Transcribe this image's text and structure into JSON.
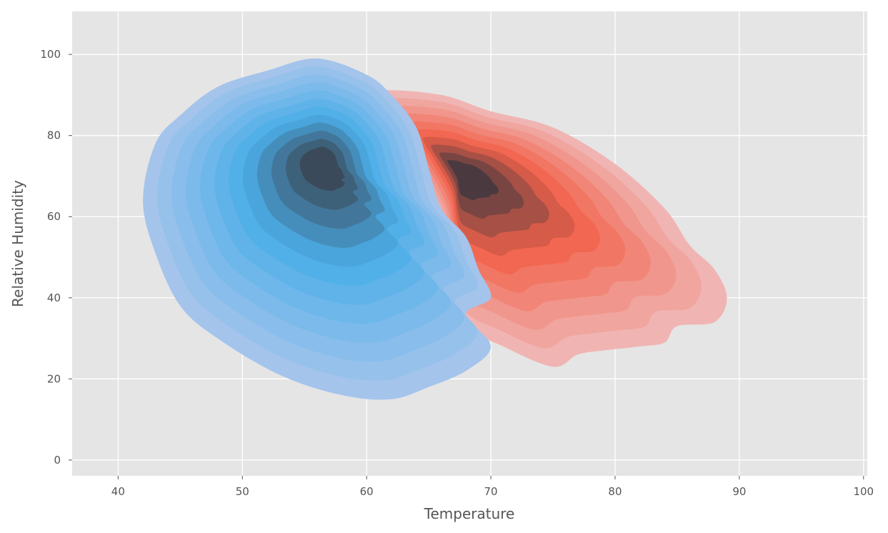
{
  "chart_data": {
    "type": "kde",
    "xlabel": "Temperature",
    "ylabel": "Relative Humidity",
    "xlim": [
      36.3,
      100.3
    ],
    "ylim": [
      -3.9,
      110.6
    ],
    "xticks": [
      40,
      50,
      60,
      70,
      80,
      90,
      100
    ],
    "yticks": [
      0,
      20,
      40,
      60,
      80,
      100
    ],
    "grid": true,
    "background": "#e5e5e5",
    "series": [
      {
        "color_light": "#f0b5b3",
        "color_mid": "#f26149",
        "color_peak": "#4a3a40",
        "peak": [
          67.5,
          71
        ],
        "outline": [
          [
            61,
            91
          ],
          [
            66,
            90
          ],
          [
            70,
            86
          ],
          [
            75,
            82
          ],
          [
            80,
            73
          ],
          [
            84,
            62
          ],
          [
            86,
            53
          ],
          [
            88,
            47
          ],
          [
            89,
            40
          ],
          [
            88,
            34
          ],
          [
            85,
            33
          ],
          [
            84,
            29
          ],
          [
            82,
            28
          ],
          [
            79,
            27
          ],
          [
            77,
            26
          ],
          [
            75,
            23
          ],
          [
            71,
            28
          ],
          [
            68,
            33
          ],
          [
            67,
            43
          ],
          [
            66,
            60
          ],
          [
            63,
            77
          ],
          [
            61,
            87
          ]
        ],
        "levels": 10
      },
      {
        "color_light": "#a4c4ec",
        "color_mid": "#4aaee8",
        "color_peak": "#3b4a5a",
        "peak": [
          56.5,
          74
        ],
        "outline": [
          [
            56,
            99
          ],
          [
            60,
            95
          ],
          [
            62,
            90
          ],
          [
            64,
            82
          ],
          [
            65,
            72
          ],
          [
            66,
            62
          ],
          [
            68,
            55
          ],
          [
            69,
            47
          ],
          [
            70,
            40
          ],
          [
            68,
            36
          ],
          [
            70,
            28
          ],
          [
            68,
            22
          ],
          [
            65,
            18
          ],
          [
            62,
            15
          ],
          [
            58,
            16
          ],
          [
            53,
            21
          ],
          [
            48,
            30
          ],
          [
            45,
            38
          ],
          [
            43,
            51
          ],
          [
            42,
            64
          ],
          [
            43,
            78
          ],
          [
            45,
            85
          ],
          [
            48,
            92
          ],
          [
            52,
            96
          ]
        ],
        "levels": 12
      }
    ]
  }
}
